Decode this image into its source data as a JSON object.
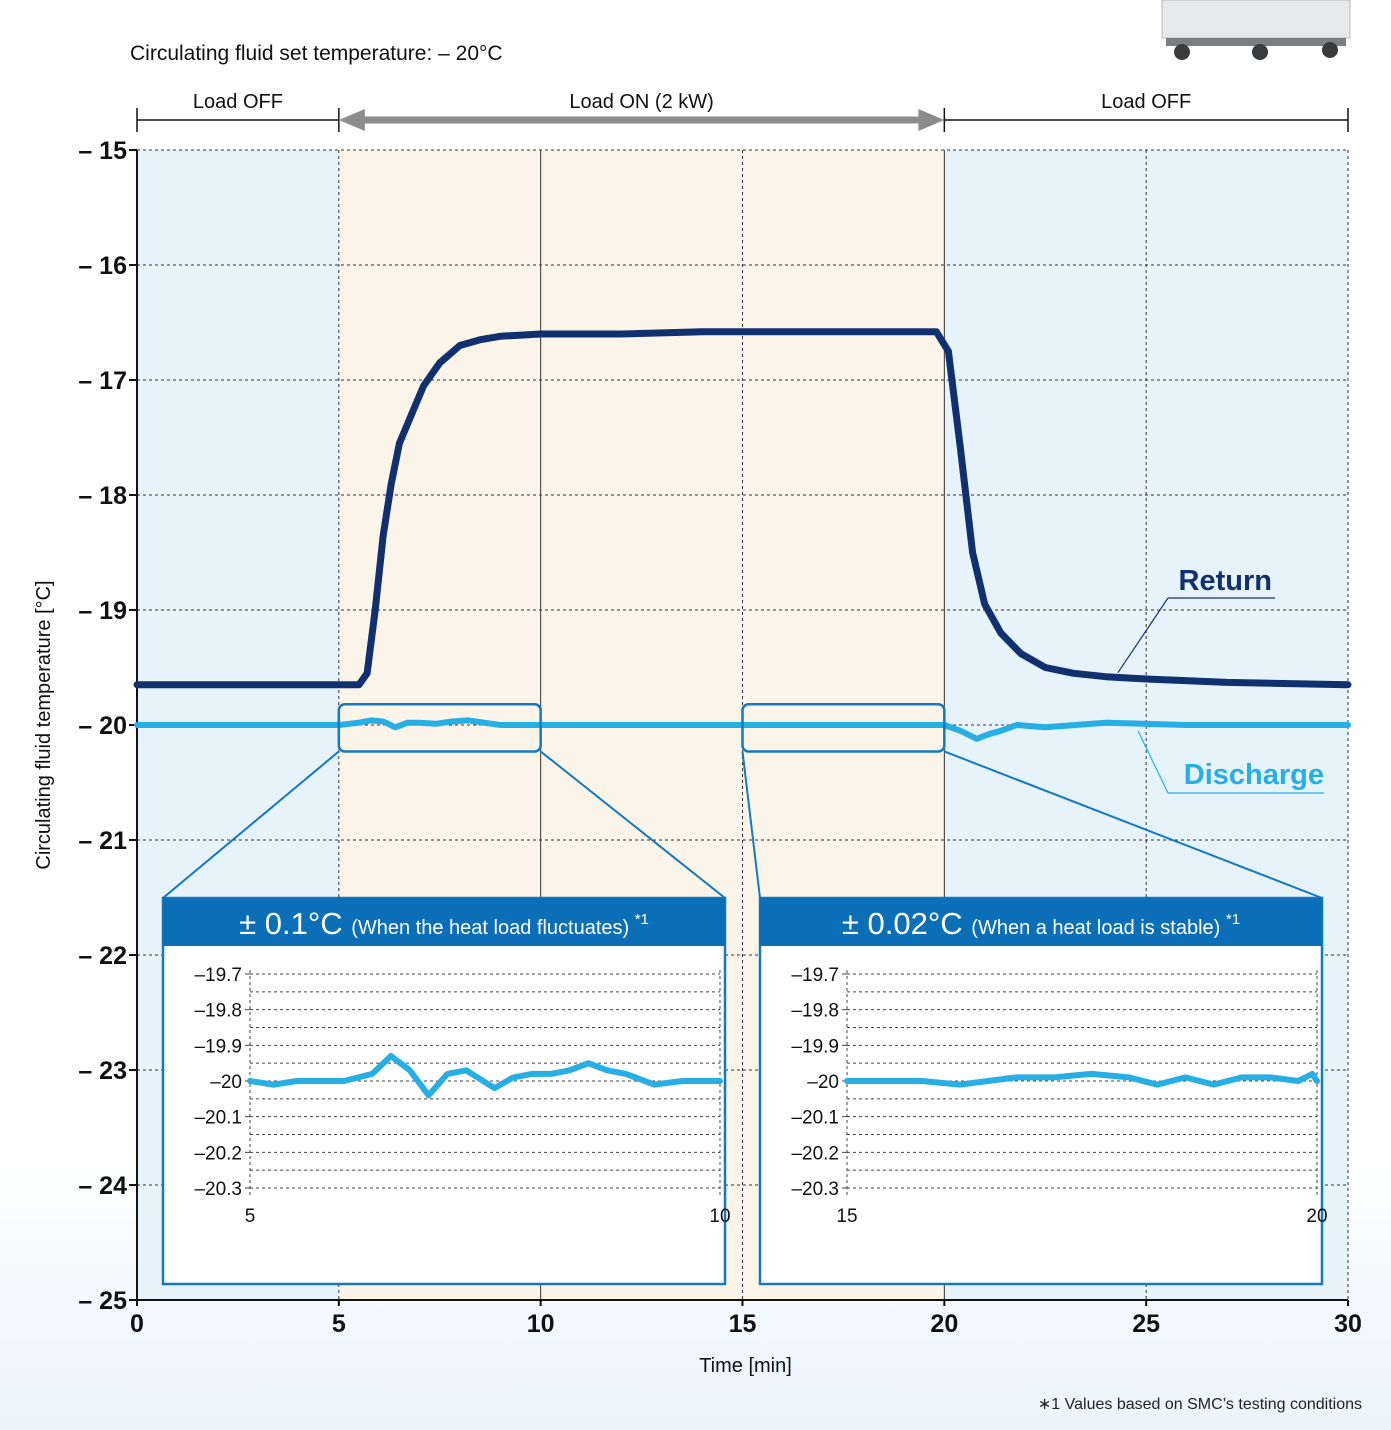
{
  "header": {
    "set_temperature": "Circulating fluid set temperature: – 20°C"
  },
  "phases": [
    {
      "label": "Load OFF",
      "x_start": 0,
      "x_end": 5
    },
    {
      "label": "Load ON (2 kW)",
      "x_start": 5,
      "x_end": 20
    },
    {
      "label": "Load OFF",
      "x_start": 20,
      "x_end": 30
    }
  ],
  "colors": {
    "load_off_bg": "#e6f3fb",
    "load_on_bg": "#fbf4e9",
    "return_line": "#10306e",
    "discharge_line": "#27aee4",
    "inset_header": "#0b6fb8",
    "inset_border": "#1479be"
  },
  "chart_data": [
    {
      "type": "line",
      "xlabel": "Time [min]",
      "ylabel": "Circulating fluid temperature [°C]",
      "xlim": [
        0,
        30
      ],
      "ylim": [
        -25,
        -15
      ],
      "x_ticks": [
        "0",
        "5",
        "10",
        "15",
        "20",
        "25",
        "30"
      ],
      "y_ticks": [
        "– 15",
        "– 16",
        "– 17",
        "– 18",
        "– 19",
        "– 20",
        "– 21",
        "– 22",
        "– 23",
        "– 24",
        "– 25"
      ],
      "grid": true,
      "series": [
        {
          "name": "Return",
          "x": [
            0,
            2,
            4,
            5.5,
            5.7,
            5.9,
            6.1,
            6.3,
            6.5,
            6.8,
            7.1,
            7.5,
            8.0,
            8.5,
            9.0,
            10,
            12,
            14,
            16,
            18,
            19.8,
            20.1,
            20.4,
            20.7,
            21.0,
            21.4,
            21.9,
            22.5,
            23.2,
            24,
            25,
            27,
            30
          ],
          "y": [
            -19.65,
            -19.65,
            -19.65,
            -19.65,
            -19.55,
            -19.0,
            -18.35,
            -17.9,
            -17.55,
            -17.3,
            -17.05,
            -16.85,
            -16.7,
            -16.65,
            -16.62,
            -16.6,
            -16.6,
            -16.58,
            -16.58,
            -16.58,
            -16.58,
            -16.75,
            -17.6,
            -18.5,
            -18.95,
            -19.2,
            -19.38,
            -19.5,
            -19.55,
            -19.58,
            -19.6,
            -19.63,
            -19.65
          ]
        },
        {
          "name": "Discharge",
          "x": [
            0,
            2,
            4,
            5,
            5.5,
            5.8,
            6.1,
            6.4,
            6.7,
            7.0,
            7.4,
            7.8,
            8.2,
            8.6,
            9.0,
            9.5,
            10,
            12,
            15,
            18,
            20,
            20.4,
            20.8,
            21.1,
            21.4,
            21.8,
            22.5,
            24,
            26,
            28,
            30
          ],
          "y": [
            -20.0,
            -20.0,
            -20.0,
            -20.0,
            -19.98,
            -19.96,
            -19.97,
            -20.02,
            -19.98,
            -19.98,
            -19.99,
            -19.97,
            -19.96,
            -19.98,
            -20.0,
            -20.0,
            -20.0,
            -20.0,
            -20.0,
            -20.0,
            -20.0,
            -20.05,
            -20.12,
            -20.08,
            -20.05,
            -20.0,
            -20.02,
            -19.98,
            -20.0,
            -20.0,
            -20.0
          ]
        }
      ]
    },
    {
      "type": "line",
      "title": "± 0.1°C",
      "subtitle": "(When the heat load fluctuates)",
      "note_mark": "*1",
      "xlim": [
        5,
        10
      ],
      "ylim": [
        -20.3,
        -19.7
      ],
      "x_ticks": [
        "5",
        "10"
      ],
      "y_ticks": [
        "–19.7",
        "–19.8",
        "–19.9",
        "–20",
        "–20.1",
        "–20.2",
        "–20.3"
      ],
      "grid": true,
      "series": [
        {
          "x": [
            5.0,
            5.25,
            5.5,
            5.75,
            6.0,
            6.3,
            6.5,
            6.7,
            6.9,
            7.1,
            7.3,
            7.6,
            7.8,
            8.0,
            8.2,
            8.4,
            8.6,
            8.8,
            9.0,
            9.3,
            9.6,
            9.8,
            10.0
          ],
          "y": [
            -20.0,
            -20.01,
            -20.0,
            -20.0,
            -20.0,
            -19.98,
            -19.93,
            -19.97,
            -20.04,
            -19.98,
            -19.97,
            -20.02,
            -19.99,
            -19.98,
            -19.98,
            -19.97,
            -19.95,
            -19.97,
            -19.98,
            -20.01,
            -20.0,
            -20.0,
            -20.0
          ]
        }
      ]
    },
    {
      "type": "line",
      "title": "± 0.02°C",
      "subtitle": "(When a heat load is stable)",
      "note_mark": "*1",
      "xlim": [
        15,
        20
      ],
      "ylim": [
        -20.3,
        -19.7
      ],
      "x_ticks": [
        "15",
        "20"
      ],
      "y_ticks": [
        "–19.7",
        "–19.8",
        "–19.9",
        "–20",
        "–20.1",
        "–20.2",
        "–20.3"
      ],
      "grid": true,
      "series": [
        {
          "x": [
            15.0,
            15.4,
            15.8,
            16.2,
            16.5,
            16.8,
            17.2,
            17.6,
            18.0,
            18.3,
            18.6,
            18.9,
            19.2,
            19.5,
            19.8,
            19.95,
            20.0
          ],
          "y": [
            -20.0,
            -20.0,
            -20.0,
            -20.01,
            -20.0,
            -19.99,
            -19.99,
            -19.98,
            -19.99,
            -20.01,
            -19.99,
            -20.01,
            -19.99,
            -19.99,
            -20.0,
            -19.98,
            -20.0
          ]
        }
      ]
    }
  ],
  "footnote": "∗1  Values based on SMC’s testing conditions"
}
